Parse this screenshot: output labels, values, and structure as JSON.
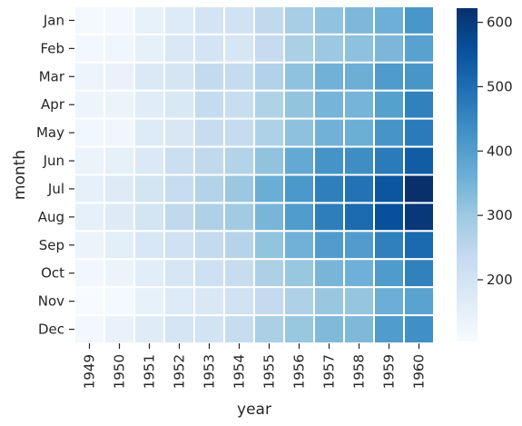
{
  "chart_data": {
    "type": "heatmap",
    "title": "",
    "xlabel": "year",
    "ylabel": "month",
    "x": [
      "1949",
      "1950",
      "1951",
      "1952",
      "1953",
      "1954",
      "1955",
      "1956",
      "1957",
      "1958",
      "1959",
      "1960"
    ],
    "y": [
      "Jan",
      "Feb",
      "Mar",
      "Apr",
      "May",
      "Jun",
      "Jul",
      "Aug",
      "Sep",
      "Oct",
      "Nov",
      "Dec"
    ],
    "values": [
      [
        112,
        115,
        145,
        171,
        196,
        204,
        242,
        284,
        315,
        340,
        360,
        417
      ],
      [
        118,
        126,
        150,
        180,
        196,
        188,
        233,
        277,
        301,
        318,
        342,
        391
      ],
      [
        132,
        141,
        178,
        193,
        236,
        235,
        267,
        317,
        356,
        362,
        406,
        419
      ],
      [
        129,
        135,
        163,
        181,
        235,
        227,
        269,
        313,
        348,
        348,
        396,
        461
      ],
      [
        121,
        125,
        172,
        183,
        229,
        234,
        270,
        318,
        355,
        363,
        420,
        472
      ],
      [
        135,
        149,
        178,
        218,
        243,
        264,
        315,
        374,
        422,
        435,
        472,
        535
      ],
      [
        148,
        170,
        199,
        230,
        264,
        302,
        364,
        413,
        465,
        491,
        548,
        622
      ],
      [
        148,
        170,
        199,
        242,
        272,
        293,
        347,
        405,
        467,
        505,
        559,
        606
      ],
      [
        136,
        158,
        184,
        209,
        237,
        259,
        312,
        355,
        404,
        404,
        463,
        508
      ],
      [
        119,
        133,
        162,
        191,
        211,
        229,
        274,
        306,
        347,
        359,
        407,
        461
      ],
      [
        104,
        114,
        146,
        172,
        180,
        203,
        237,
        271,
        305,
        310,
        362,
        390
      ],
      [
        118,
        140,
        166,
        194,
        201,
        229,
        278,
        306,
        336,
        337,
        405,
        432
      ]
    ],
    "vmin": 104,
    "vmax": 622,
    "colormap": "Blues",
    "cell_separators": "white",
    "colorbar": {
      "position": "right",
      "ticks": [
        200,
        300,
        400,
        500,
        600
      ],
      "tick_labels": [
        "200",
        "300",
        "400",
        "500",
        "600"
      ]
    }
  }
}
